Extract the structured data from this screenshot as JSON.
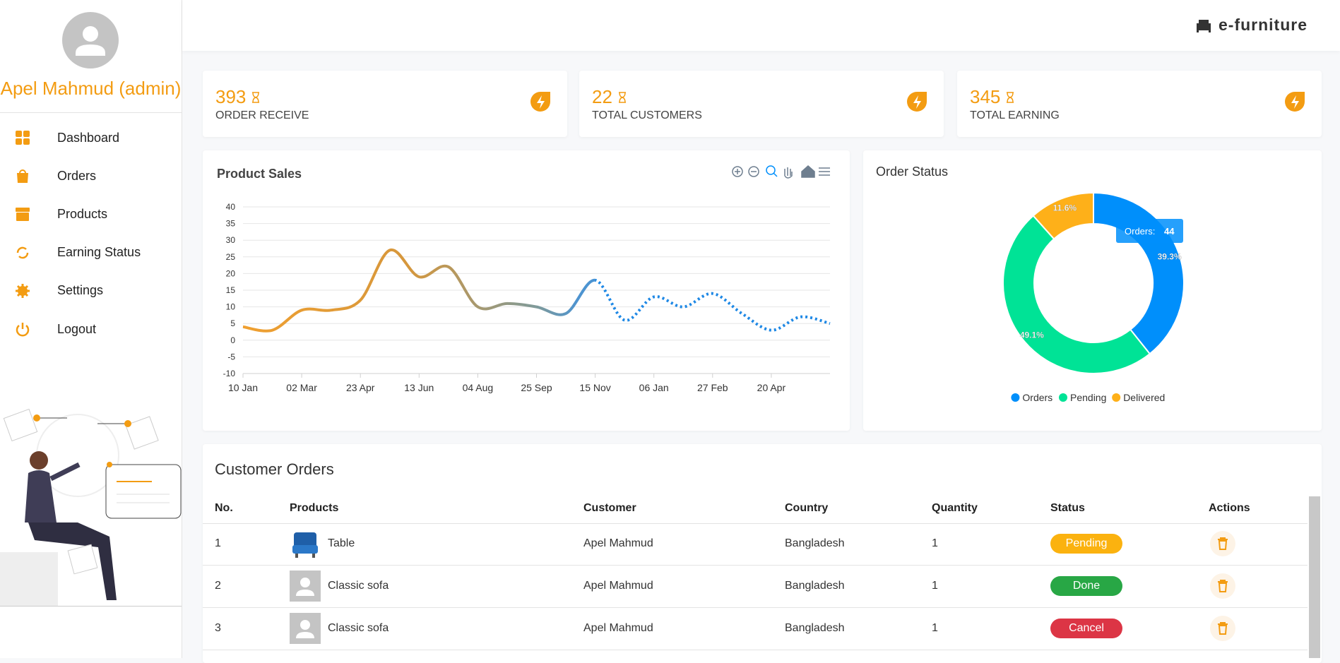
{
  "sidebar": {
    "user": "Apel Mahmud (admin)",
    "menu": [
      "Dashboard",
      "Orders",
      "Products",
      "Earning Status",
      "Settings",
      "Logout"
    ]
  },
  "header": {
    "brand": "e-furniture"
  },
  "stats": [
    {
      "value": "393",
      "label": "ORDER RECEIVE"
    },
    {
      "value": "22",
      "label": "TOTAL CUSTOMERS"
    },
    {
      "value": "345",
      "label": "TOTAL EARNING"
    }
  ],
  "chart_data": [
    {
      "type": "line",
      "title": "Product Sales",
      "categories": [
        "10 Jan",
        null,
        "02 Mar",
        null,
        "23 Apr",
        null,
        "13 Jun",
        null,
        "04 Aug",
        null,
        "25 Sep",
        null,
        "15 Nov",
        null,
        "06 Jan",
        null,
        "27 Feb",
        null,
        "20 Apr",
        null,
        null
      ],
      "series": [
        {
          "color": "#1e88e5",
          "values": [
            4,
            3,
            9,
            9,
            12,
            27,
            19,
            22,
            10,
            11,
            10,
            8,
            18,
            6,
            13,
            10,
            14,
            8,
            3,
            7,
            5
          ]
        }
      ],
      "ylim": [
        -10,
        40
      ],
      "yticks": [
        -10,
        -5,
        0,
        5,
        10,
        15,
        20,
        25,
        30,
        35,
        40
      ],
      "grid": true
    },
    {
      "type": "pie",
      "title": "Order Status",
      "categories": [
        "Orders",
        "Pending",
        "Delivered"
      ],
      "values": [
        39.3,
        49.1,
        11.6
      ],
      "value_labels": [
        "39.3%",
        "49.1%",
        "11.6%"
      ],
      "colors": [
        "#008ffb",
        "#00e396",
        "#feb019"
      ],
      "legend": "bottom",
      "tooltip": {
        "label": "Orders:",
        "value": 44
      }
    }
  ],
  "table": {
    "title": "Customer Orders",
    "headers": [
      "No.",
      "Products",
      "Customer",
      "Country",
      "Quantity",
      "Status",
      "Actions"
    ],
    "rows": [
      {
        "no": "1",
        "product": "Table",
        "customer": "Apel Mahmud",
        "country": "Bangladesh",
        "quantity": "1",
        "status": "Pending",
        "status_color": "#fbb20f"
      },
      {
        "no": "2",
        "product": "Classic sofa",
        "customer": "Apel Mahmud",
        "country": "Bangladesh",
        "quantity": "1",
        "status": "Done",
        "status_color": "#28a745"
      },
      {
        "no": "3",
        "product": "Classic sofa",
        "customer": "Apel Mahmud",
        "country": "Bangladesh",
        "quantity": "1",
        "status": "Cancel",
        "status_color": "#dc3545"
      }
    ]
  }
}
